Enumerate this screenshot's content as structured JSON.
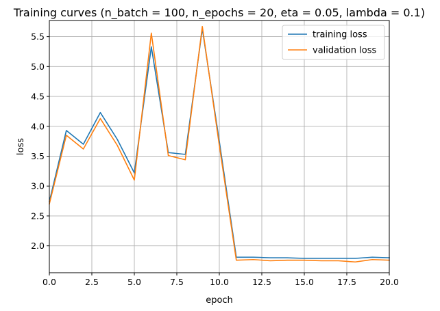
{
  "chart_data": {
    "type": "line",
    "title": "Training curves (n_batch = 100, n_epochs = 20, eta = 0.05, lambda = 0.1)",
    "xlabel": "epoch",
    "ylabel": "loss",
    "xlim": [
      0,
      20
    ],
    "ylim": [
      1.55,
      5.77
    ],
    "xticks": [
      0,
      2.5,
      5,
      7.5,
      10,
      12.5,
      15,
      17.5,
      20
    ],
    "xtick_labels": [
      "0.0",
      "2.5",
      "5.0",
      "7.5",
      "10.0",
      "12.5",
      "15.0",
      "17.5",
      "20.0"
    ],
    "yticks": [
      2.0,
      2.5,
      3.0,
      3.5,
      4.0,
      4.5,
      5.0,
      5.5
    ],
    "ytick_labels": [
      "2.0",
      "2.5",
      "3.0",
      "3.5",
      "4.0",
      "4.5",
      "5.0",
      "5.5"
    ],
    "grid": true,
    "legend_position": "top-right",
    "x": [
      0,
      1,
      2,
      3,
      4,
      5,
      6,
      7,
      8,
      9,
      10,
      11,
      12,
      13,
      14,
      15,
      16,
      17,
      18,
      19,
      20
    ],
    "series": [
      {
        "name": "training loss",
        "color": "#1f77b4",
        "values": [
          2.74,
          3.93,
          3.7,
          4.23,
          3.78,
          3.22,
          5.33,
          3.56,
          3.53,
          5.63,
          3.75,
          1.81,
          1.81,
          1.8,
          1.8,
          1.79,
          1.79,
          1.79,
          1.79,
          1.81,
          1.8
        ]
      },
      {
        "name": "validation loss",
        "color": "#ff7f0e",
        "values": [
          2.7,
          3.85,
          3.62,
          4.13,
          3.68,
          3.1,
          5.56,
          3.51,
          3.44,
          5.67,
          3.68,
          1.76,
          1.77,
          1.75,
          1.76,
          1.76,
          1.75,
          1.75,
          1.73,
          1.77,
          1.76
        ]
      }
    ]
  }
}
